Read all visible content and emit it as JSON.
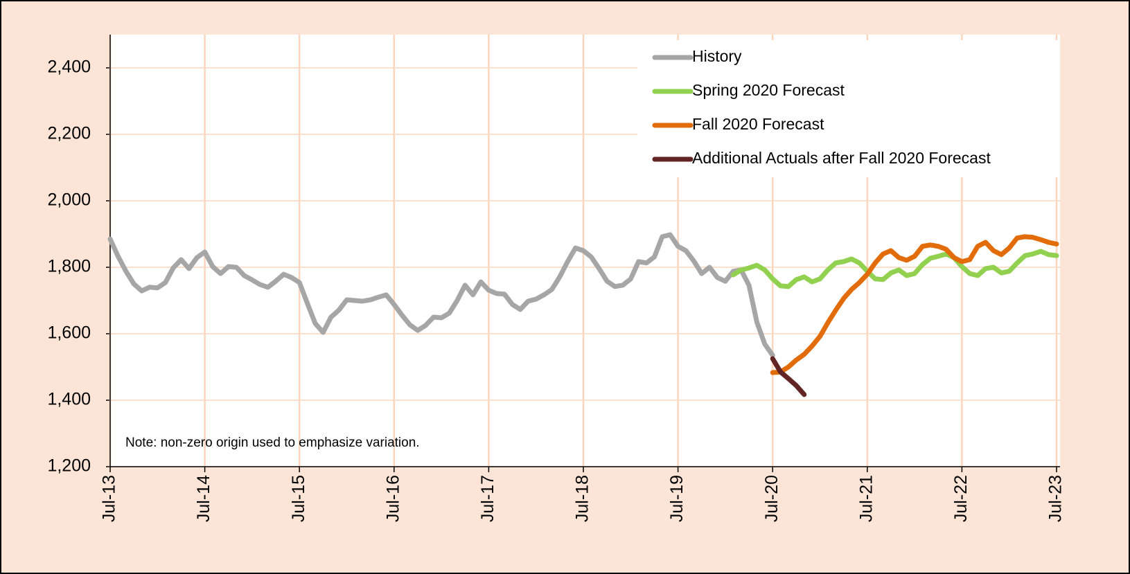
{
  "chart_data": {
    "type": "line",
    "note": "Note: non-zero origin used to emphasize variation.",
    "legend": "upper right",
    "grid": true,
    "ylim": [
      1200,
      2500
    ],
    "yticks": [
      {
        "value": 1200,
        "label": "1,200"
      },
      {
        "value": 1400,
        "label": "1,400"
      },
      {
        "value": 1600,
        "label": "1,600"
      },
      {
        "value": 1800,
        "label": "1,800"
      },
      {
        "value": 2000,
        "label": "2,000"
      },
      {
        "value": 2200,
        "label": "2,200"
      },
      {
        "value": 2400,
        "label": "2,400"
      }
    ],
    "categories": [
      "Jul-13",
      null,
      null,
      null,
      null,
      null,
      null,
      null,
      null,
      null,
      null,
      null,
      "Jul-14",
      null,
      null,
      null,
      null,
      null,
      null,
      null,
      null,
      null,
      null,
      null,
      "Jul-15",
      null,
      null,
      null,
      null,
      null,
      null,
      null,
      null,
      null,
      null,
      null,
      "Jul-16",
      null,
      null,
      null,
      null,
      null,
      null,
      null,
      null,
      null,
      null,
      null,
      "Jul-17",
      null,
      null,
      null,
      null,
      null,
      null,
      null,
      null,
      null,
      null,
      null,
      "Jul-18",
      null,
      null,
      null,
      null,
      null,
      null,
      null,
      null,
      null,
      null,
      null,
      "Jul-19",
      null,
      null,
      null,
      null,
      null,
      null,
      null,
      null,
      null,
      null,
      null,
      "Jul-20",
      null,
      null,
      null,
      null,
      null,
      null,
      null,
      null,
      null,
      null,
      null,
      "Jul-21",
      null,
      null,
      null,
      null,
      null,
      null,
      null,
      null,
      null,
      null,
      null,
      "Jul-22",
      null,
      null,
      null,
      null,
      null,
      null,
      null,
      null,
      null,
      null,
      null,
      "Jul-23"
    ],
    "series": [
      {
        "name": "History",
        "color": "#a6a6a6",
        "values": [
          1885,
          1833,
          1788,
          1750,
          1729,
          1740,
          1738,
          1754,
          1798,
          1823,
          1796,
          1829,
          1846,
          1802,
          1781,
          1802,
          1800,
          1775,
          1762,
          1748,
          1740,
          1758,
          1779,
          1769,
          1754,
          1692,
          1631,
          1604,
          1650,
          1671,
          1702,
          1700,
          1698,
          1702,
          1710,
          1717,
          1688,
          1656,
          1627,
          1610,
          1625,
          1650,
          1648,
          1662,
          1700,
          1746,
          1717,
          1756,
          1731,
          1721,
          1719,
          1688,
          1673,
          1698,
          1704,
          1717,
          1733,
          1771,
          1817,
          1858,
          1850,
          1831,
          1796,
          1758,
          1742,
          1746,
          1765,
          1817,
          1813,
          1831,
          1892,
          1898,
          1863,
          1850,
          1819,
          1781,
          1800,
          1769,
          1758,
          1788,
          1792,
          1746,
          1635,
          1569,
          1535,
          null,
          null,
          null,
          null,
          null,
          null,
          null,
          null,
          null,
          null,
          null,
          null,
          null,
          null,
          null,
          null,
          null,
          null,
          null,
          null,
          null,
          null,
          null,
          null,
          null,
          null,
          null,
          null,
          null,
          null,
          null,
          null,
          null,
          null,
          null,
          null
        ]
      },
      {
        "name": "Spring 2020 Forecast",
        "color": "#92d050",
        "values": [
          null,
          null,
          null,
          null,
          null,
          null,
          null,
          null,
          null,
          null,
          null,
          null,
          null,
          null,
          null,
          null,
          null,
          null,
          null,
          null,
          null,
          null,
          null,
          null,
          null,
          null,
          null,
          null,
          null,
          null,
          null,
          null,
          null,
          null,
          null,
          null,
          null,
          null,
          null,
          null,
          null,
          null,
          null,
          null,
          null,
          null,
          null,
          null,
          null,
          null,
          null,
          null,
          null,
          null,
          null,
          null,
          null,
          null,
          null,
          null,
          null,
          null,
          null,
          null,
          null,
          null,
          null,
          null,
          null,
          null,
          null,
          null,
          null,
          null,
          null,
          null,
          null,
          null,
          null,
          1777,
          1792,
          1798,
          1806,
          1792,
          1765,
          1744,
          1742,
          1763,
          1771,
          1756,
          1765,
          1792,
          1813,
          1817,
          1825,
          1813,
          1788,
          1765,
          1763,
          1783,
          1792,
          1775,
          1781,
          1808,
          1827,
          1833,
          1840,
          1829,
          1802,
          1781,
          1775,
          1796,
          1800,
          1783,
          1788,
          1813,
          1835,
          1840,
          1848,
          1838,
          1835
        ]
      },
      {
        "name": "Fall 2020 Forecast",
        "color": "#e36c0a",
        "values": [
          null,
          null,
          null,
          null,
          null,
          null,
          null,
          null,
          null,
          null,
          null,
          null,
          null,
          null,
          null,
          null,
          null,
          null,
          null,
          null,
          null,
          null,
          null,
          null,
          null,
          null,
          null,
          null,
          null,
          null,
          null,
          null,
          null,
          null,
          null,
          null,
          null,
          null,
          null,
          null,
          null,
          null,
          null,
          null,
          null,
          null,
          null,
          null,
          null,
          null,
          null,
          null,
          null,
          null,
          null,
          null,
          null,
          null,
          null,
          null,
          null,
          null,
          null,
          null,
          null,
          null,
          null,
          null,
          null,
          null,
          null,
          null,
          null,
          null,
          null,
          null,
          null,
          null,
          null,
          null,
          null,
          null,
          null,
          null,
          1483,
          1485,
          1500,
          1521,
          1538,
          1563,
          1592,
          1633,
          1671,
          1706,
          1733,
          1754,
          1779,
          1813,
          1840,
          1850,
          1829,
          1821,
          1833,
          1863,
          1867,
          1863,
          1854,
          1829,
          1817,
          1823,
          1863,
          1875,
          1850,
          1838,
          1858,
          1888,
          1892,
          1890,
          1883,
          1875,
          1870
        ]
      },
      {
        "name": "Additional Actuals after Fall 2020 Forecast",
        "color": "#632523",
        "values": [
          null,
          null,
          null,
          null,
          null,
          null,
          null,
          null,
          null,
          null,
          null,
          null,
          null,
          null,
          null,
          null,
          null,
          null,
          null,
          null,
          null,
          null,
          null,
          null,
          null,
          null,
          null,
          null,
          null,
          null,
          null,
          null,
          null,
          null,
          null,
          null,
          null,
          null,
          null,
          null,
          null,
          null,
          null,
          null,
          null,
          null,
          null,
          null,
          null,
          null,
          null,
          null,
          null,
          null,
          null,
          null,
          null,
          null,
          null,
          null,
          null,
          null,
          null,
          null,
          null,
          null,
          null,
          null,
          null,
          null,
          null,
          null,
          null,
          null,
          null,
          null,
          null,
          null,
          null,
          null,
          null,
          null,
          null,
          null,
          1525,
          1485,
          1465,
          1444,
          1417,
          null,
          null,
          null,
          null,
          null,
          null,
          null,
          null,
          null,
          null,
          null,
          null,
          null,
          null,
          null,
          null,
          null,
          null,
          null,
          null,
          null,
          null,
          null,
          null,
          null,
          null,
          null,
          null,
          null,
          null,
          null,
          null
        ]
      }
    ]
  }
}
